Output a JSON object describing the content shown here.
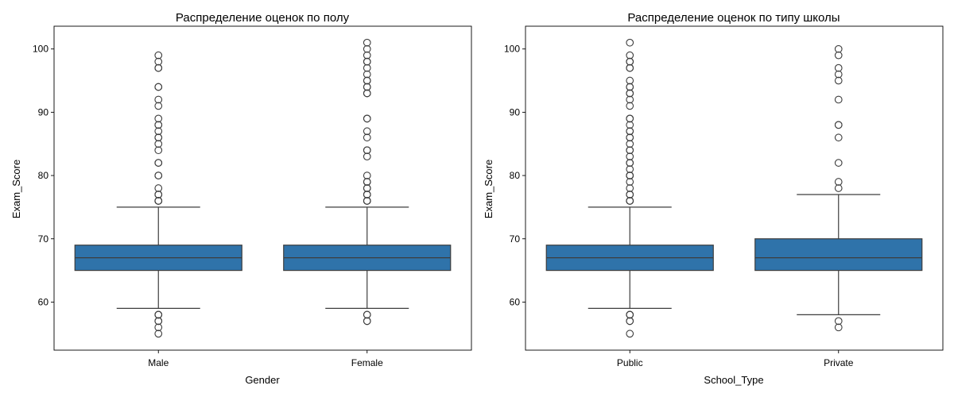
{
  "figure": {
    "background": "#ffffff",
    "box_color": "#2f73aa",
    "edge_color": "#3d3d3d"
  },
  "chart_data": [
    {
      "type": "box",
      "title": "Распределение оценок по полу",
      "xlabel": "Gender",
      "ylabel": "Exam_Score",
      "ylim": [
        52.4,
        103.6
      ],
      "yticks": [
        60,
        70,
        80,
        90,
        100
      ],
      "grid": false,
      "categories": [
        {
          "name": "Male",
          "q1": 65,
          "median": 67,
          "q3": 69,
          "whisker_low": 59,
          "whisker_high": 75,
          "outliers": [
            55,
            56,
            57,
            57,
            58,
            58,
            58,
            76,
            76,
            76,
            77,
            77,
            78,
            80,
            80,
            82,
            82,
            84,
            85,
            86,
            86,
            87,
            88,
            88,
            89,
            91,
            92,
            94,
            94,
            97,
            97,
            98,
            99
          ]
        },
        {
          "name": "Female",
          "q1": 65,
          "median": 67,
          "q3": 69,
          "whisker_low": 59,
          "whisker_high": 75,
          "outliers": [
            57,
            57,
            58,
            58,
            76,
            76,
            76,
            77,
            77,
            78,
            78,
            79,
            79,
            80,
            83,
            84,
            84,
            86,
            87,
            89,
            89,
            93,
            93,
            94,
            94,
            95,
            95,
            96,
            97,
            98,
            98,
            99,
            100,
            101
          ]
        }
      ]
    },
    {
      "type": "box",
      "title": "Распределение оценок по типу школы",
      "xlabel": "School_Type",
      "ylabel": "Exam_Score",
      "ylim": [
        52.4,
        103.6
      ],
      "yticks": [
        60,
        70,
        80,
        90,
        100
      ],
      "grid": false,
      "categories": [
        {
          "name": "Public",
          "q1": 65,
          "median": 67,
          "q3": 69,
          "whisker_low": 59,
          "whisker_high": 75,
          "outliers": [
            55,
            57,
            57,
            58,
            58,
            58,
            76,
            76,
            76,
            77,
            77,
            78,
            79,
            80,
            80,
            80,
            81,
            82,
            82,
            83,
            84,
            84,
            85,
            86,
            86,
            87,
            87,
            88,
            89,
            89,
            91,
            92,
            93,
            93,
            94,
            94,
            95,
            97,
            97,
            98,
            98,
            99,
            101
          ]
        },
        {
          "name": "Private",
          "q1": 65,
          "median": 67,
          "q3": 70,
          "whisker_low": 58,
          "whisker_high": 77,
          "outliers": [
            56,
            57,
            78,
            79,
            82,
            86,
            88,
            88,
            92,
            95,
            96,
            97,
            99,
            100
          ]
        }
      ]
    }
  ]
}
